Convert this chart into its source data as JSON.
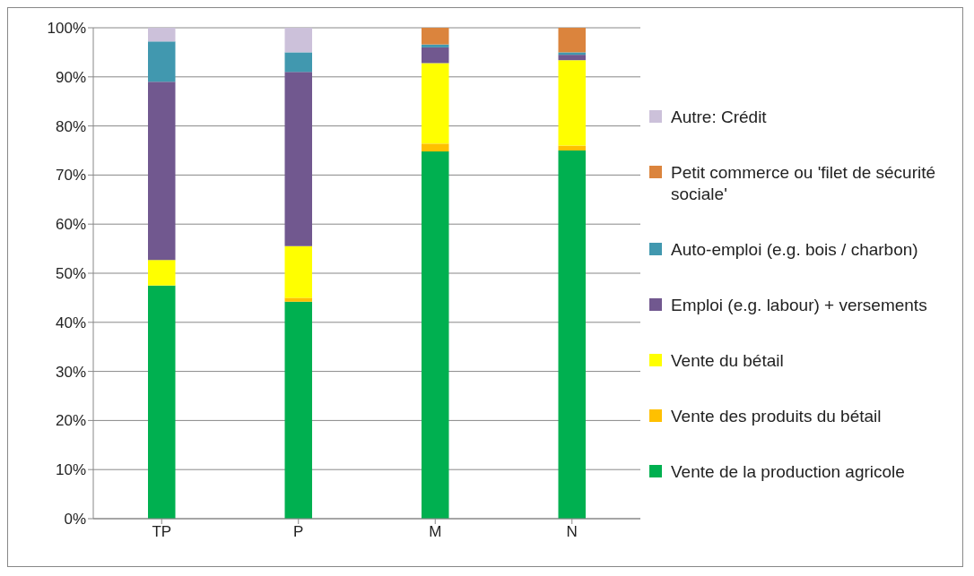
{
  "chart_data": {
    "type": "bar",
    "stacked": true,
    "categories": [
      "TP",
      "P",
      "M",
      "N"
    ],
    "ylim": [
      0,
      100
    ],
    "yticks": [
      {
        "value": 0,
        "label": "0%"
      },
      {
        "value": 10,
        "label": "10%"
      },
      {
        "value": 20,
        "label": "20%"
      },
      {
        "value": 30,
        "label": "30%"
      },
      {
        "value": 40,
        "label": "40%"
      },
      {
        "value": 50,
        "label": "50%"
      },
      {
        "value": 60,
        "label": "60%"
      },
      {
        "value": 70,
        "label": "70%"
      },
      {
        "value": 80,
        "label": "80%"
      },
      {
        "value": 90,
        "label": "90%"
      },
      {
        "value": 100,
        "label": "100%"
      }
    ],
    "grid": "y",
    "legend": "right",
    "series": [
      {
        "name": "Vente de la production agricole",
        "color": "#00b050",
        "values": [
          47.5,
          44.2,
          74.8,
          75
        ]
      },
      {
        "name": "Vente des produits du bétail",
        "color": "#ffc000",
        "values": [
          0,
          0.8,
          1.6,
          1
        ]
      },
      {
        "name": "Vente du bétail",
        "color": "#ffff00",
        "values": [
          5.2,
          10.5,
          16.4,
          17.4
        ]
      },
      {
        "name": "Emploi (e.g. labour) + versements",
        "color": "#71588f",
        "values": [
          36.3,
          35.5,
          3.2,
          1.1
        ]
      },
      {
        "name": "Auto-emploi (e.g. bois / charbon)",
        "color": "#4198af",
        "values": [
          8.2,
          4,
          0.6,
          0.5
        ]
      },
      {
        "name": "Petit commerce ou 'filet de sécurité sociale'",
        "color": "#db843d",
        "values": [
          0,
          0,
          3.4,
          5
        ]
      },
      {
        "name": "Autre: Crédit",
        "color": "#ccc1da",
        "values": [
          2.8,
          5,
          0,
          0
        ]
      }
    ]
  }
}
